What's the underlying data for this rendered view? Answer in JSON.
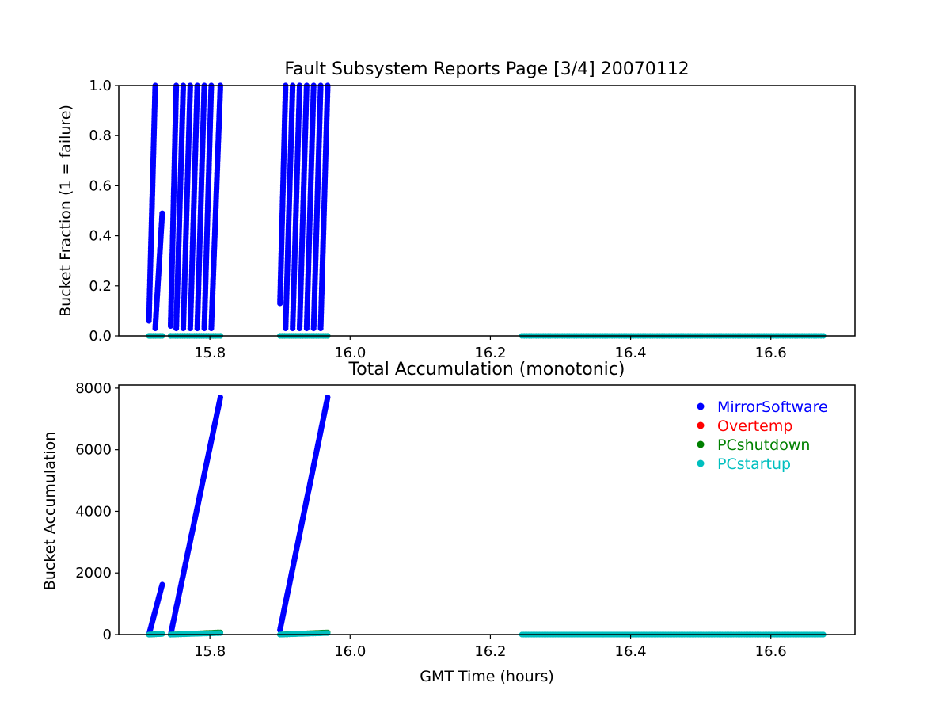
{
  "figure": {
    "background": "#ffffff"
  },
  "chart_data": [
    {
      "type": "scatter",
      "title": "Fault Subsystem Reports Page [3/4] 20070112",
      "xlabel": "",
      "ylabel": "Bucket Fraction (1 = failure)",
      "xlim": [
        15.67,
        16.72
      ],
      "ylim": [
        0.0,
        1.0
      ],
      "x_ticks": [
        "15.8",
        "16.0",
        "16.2",
        "16.4",
        "16.6"
      ],
      "y_ticks": [
        "0.0",
        "0.2",
        "0.4",
        "0.6",
        "0.8",
        "1.0"
      ],
      "grid": false,
      "series": [
        {
          "name": "MirrorSoftware",
          "color": "#0000ff",
          "sawtooth_cycles": [
            {
              "x_start": 15.713,
              "x_end": 15.722,
              "y_min": 0.06,
              "y_max": 1.0
            },
            {
              "x_start": 15.722,
              "x_end": 15.732,
              "y_min": 0.03,
              "y_max": 0.49
            },
            {
              "x_start": 15.744,
              "x_end": 15.752,
              "y_min": 0.04,
              "y_max": 1.0
            },
            {
              "x_start": 15.752,
              "x_end": 15.762,
              "y_min": 0.03,
              "y_max": 1.0
            },
            {
              "x_start": 15.762,
              "x_end": 15.772,
              "y_min": 0.03,
              "y_max": 1.0
            },
            {
              "x_start": 15.772,
              "x_end": 15.782,
              "y_min": 0.03,
              "y_max": 1.0
            },
            {
              "x_start": 15.782,
              "x_end": 15.792,
              "y_min": 0.03,
              "y_max": 1.0
            },
            {
              "x_start": 15.792,
              "x_end": 15.802,
              "y_min": 0.03,
              "y_max": 1.0
            },
            {
              "x_start": 15.802,
              "x_end": 15.815,
              "y_min": 0.03,
              "y_max": 1.0
            },
            {
              "x_start": 15.9,
              "x_end": 15.908,
              "y_min": 0.13,
              "y_max": 1.0
            },
            {
              "x_start": 15.908,
              "x_end": 15.918,
              "y_min": 0.03,
              "y_max": 1.0
            },
            {
              "x_start": 15.918,
              "x_end": 15.928,
              "y_min": 0.03,
              "y_max": 1.0
            },
            {
              "x_start": 15.928,
              "x_end": 15.938,
              "y_min": 0.03,
              "y_max": 1.0
            },
            {
              "x_start": 15.938,
              "x_end": 15.948,
              "y_min": 0.03,
              "y_max": 1.0
            },
            {
              "x_start": 15.948,
              "x_end": 15.958,
              "y_min": 0.03,
              "y_max": 1.0
            },
            {
              "x_start": 15.958,
              "x_end": 15.968,
              "y_min": 0.03,
              "y_max": 1.0
            }
          ]
        },
        {
          "name": "Overtemp",
          "color": "#ff0000",
          "segments": []
        },
        {
          "name": "PCshutdown",
          "color": "#008000",
          "segments": [
            {
              "x_start": 15.713,
              "x_end": 15.732,
              "y": 0.0
            },
            {
              "x_start": 15.744,
              "x_end": 15.815,
              "y": 0.0
            },
            {
              "x_start": 15.9,
              "x_end": 15.968,
              "y": 0.0
            }
          ]
        },
        {
          "name": "PCstartup",
          "color": "#00bfbf",
          "segments": [
            {
              "x_start": 15.713,
              "x_end": 15.732,
              "y": 0.0
            },
            {
              "x_start": 15.744,
              "x_end": 15.815,
              "y": 0.0
            },
            {
              "x_start": 15.9,
              "x_end": 15.968,
              "y": 0.0
            },
            {
              "x_start": 16.245,
              "x_end": 16.675,
              "y": 0.0
            }
          ]
        }
      ]
    },
    {
      "type": "scatter",
      "title": "Total Accumulation (monotonic)",
      "xlabel": "GMT Time (hours)",
      "ylabel": "Bucket Accumulation",
      "xlim": [
        15.67,
        16.72
      ],
      "ylim": [
        0,
        8100
      ],
      "x_ticks": [
        "15.8",
        "16.0",
        "16.2",
        "16.4",
        "16.6"
      ],
      "y_ticks": [
        "0",
        "2000",
        "4000",
        "6000",
        "8000"
      ],
      "grid": false,
      "legend_position": "top-right",
      "series": [
        {
          "name": "MirrorSoftware",
          "color": "#0000ff",
          "ramps": [
            {
              "x_start": 15.713,
              "x_end": 15.732,
              "y_start": 0,
              "y_end": 1620
            },
            {
              "x_start": 15.744,
              "x_end": 15.815,
              "y_start": 0,
              "y_end": 7700
            },
            {
              "x_start": 15.9,
              "x_end": 15.968,
              "y_start": 150,
              "y_end": 7700
            }
          ]
        },
        {
          "name": "Overtemp",
          "color": "#ff0000",
          "ramps": []
        },
        {
          "name": "PCshutdown",
          "color": "#008000",
          "ramps": [
            {
              "x_start": 15.713,
              "x_end": 15.732,
              "y_start": 0,
              "y_end": 25
            },
            {
              "x_start": 15.744,
              "x_end": 15.815,
              "y_start": 0,
              "y_end": 70
            },
            {
              "x_start": 15.9,
              "x_end": 15.968,
              "y_start": 0,
              "y_end": 70
            }
          ]
        },
        {
          "name": "PCstartup",
          "color": "#00bfbf",
          "ramps": [
            {
              "x_start": 15.713,
              "x_end": 15.732,
              "y_start": 0,
              "y_end": 20
            },
            {
              "x_start": 15.744,
              "x_end": 15.815,
              "y_start": 0,
              "y_end": 50
            },
            {
              "x_start": 15.9,
              "x_end": 15.968,
              "y_start": 0,
              "y_end": 50
            },
            {
              "x_start": 16.245,
              "x_end": 16.675,
              "y_start": 0,
              "y_end": 0
            }
          ]
        }
      ]
    }
  ]
}
